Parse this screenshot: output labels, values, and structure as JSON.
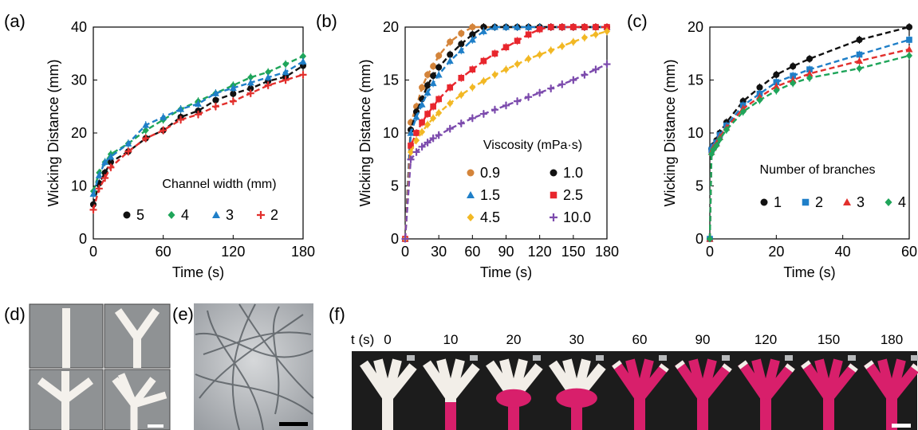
{
  "panel_labels": [
    "(a)",
    "(b)",
    "(c)",
    "(d)",
    "(e)",
    "(f)"
  ],
  "colors": {
    "black": "#111111",
    "green": "#1fa55a",
    "blue": "#1f7fc8",
    "red": "#e2302d",
    "orange": "#d4843a",
    "brightred": "#e8262d",
    "yellow": "#f2b824",
    "purple": "#7c4bad",
    "paper": "#f2eee8",
    "dye": "#d81f6b"
  },
  "chart_data": [
    {
      "type": "scatter",
      "xlabel": "Time (s)",
      "ylabel": "Wicking Distance (mm)",
      "xlim": [
        0,
        180
      ],
      "ylim": [
        0,
        40
      ],
      "xticks": [
        0,
        60,
        120,
        180
      ],
      "yticks": [
        0,
        10,
        20,
        30,
        40
      ],
      "grid": false,
      "legend": {
        "title": "Channel width (mm)",
        "placement": "bottom-center",
        "columns": 4
      },
      "series": [
        {
          "name": "5",
          "marker": "circle",
          "color": "#111111",
          "x": [
            0,
            5,
            10,
            15,
            30,
            45,
            60,
            75,
            90,
            105,
            120,
            135,
            150,
            165,
            180
          ],
          "y": [
            6.5,
            10.5,
            12.5,
            14.5,
            16.5,
            19.0,
            20.5,
            23.0,
            24.2,
            26.2,
            27.4,
            28.4,
            29.8,
            30.6,
            32.7
          ]
        },
        {
          "name": "4",
          "marker": "diamond",
          "color": "#1fa55a",
          "x": [
            0,
            5,
            10,
            15,
            30,
            45,
            60,
            75,
            90,
            105,
            120,
            135,
            150,
            165,
            180
          ],
          "y": [
            9.0,
            12.5,
            14.5,
            16.0,
            18.0,
            20.5,
            22.5,
            24.5,
            26.0,
            27.5,
            29.0,
            30.5,
            31.5,
            33.0,
            34.5
          ]
        },
        {
          "name": "3",
          "marker": "triangle",
          "color": "#1f7fc8",
          "x": [
            0,
            5,
            10,
            15,
            30,
            45,
            60,
            75,
            90,
            105,
            120,
            135,
            150,
            165,
            180
          ],
          "y": [
            8.5,
            12.0,
            14.5,
            15.5,
            18.0,
            21.5,
            23.0,
            24.5,
            25.5,
            27.5,
            28.5,
            29.5,
            30.5,
            31.5,
            33.5
          ]
        },
        {
          "name": "2",
          "marker": "plus",
          "color": "#e2302d",
          "x": [
            0,
            5,
            10,
            15,
            30,
            45,
            60,
            75,
            90,
            105,
            120,
            135,
            150,
            165,
            180
          ],
          "y": [
            5.5,
            9.5,
            11.5,
            13.5,
            16.5,
            19.0,
            20.5,
            22.5,
            23.5,
            25.0,
            26.0,
            27.5,
            29.0,
            30.0,
            31.0
          ]
        }
      ]
    },
    {
      "type": "scatter",
      "xlabel": "Time (s)",
      "ylabel": "Wicking Distance (mm)",
      "xlim": [
        0,
        180
      ],
      "ylim": [
        0,
        20
      ],
      "xticks": [
        0,
        30,
        60,
        90,
        120,
        150,
        180
      ],
      "yticks": [
        0,
        5,
        10,
        15,
        20
      ],
      "grid": false,
      "legend": {
        "title": "Viscosity (mPa·s)",
        "placement": "bottom-right",
        "columns": 2
      },
      "series": [
        {
          "name": "0.9",
          "marker": "circle",
          "color": "#d4843a",
          "x": [
            0,
            5,
            10,
            15,
            20,
            25,
            30,
            40,
            50,
            60,
            70,
            80,
            90,
            100,
            110,
            120,
            130,
            140,
            150,
            160,
            170,
            180
          ],
          "y": [
            0,
            11.0,
            12.5,
            14.3,
            15.5,
            16.3,
            17.3,
            18.6,
            19.4,
            20,
            20,
            20,
            20,
            20,
            20,
            20,
            20,
            20,
            20,
            20,
            20,
            20
          ]
        },
        {
          "name": "1.0",
          "marker": "circle",
          "color": "#111111",
          "x": [
            0,
            5,
            10,
            15,
            20,
            25,
            30,
            40,
            50,
            60,
            70,
            80,
            90,
            100,
            110,
            120,
            130,
            140,
            150,
            160,
            170,
            180
          ],
          "y": [
            0,
            10.3,
            12.0,
            13.2,
            14.5,
            15.4,
            16.2,
            17.4,
            18.4,
            19.3,
            20,
            20,
            20,
            20,
            20,
            20,
            20,
            20,
            20,
            20,
            20,
            20
          ]
        },
        {
          "name": "1.5",
          "marker": "triangle",
          "color": "#1f7fc8",
          "x": [
            0,
            5,
            10,
            15,
            20,
            25,
            30,
            40,
            50,
            60,
            70,
            80,
            90,
            100,
            110,
            120,
            130,
            140,
            150,
            160,
            170,
            180
          ],
          "y": [
            0,
            10.0,
            11.5,
            12.7,
            13.8,
            14.7,
            15.5,
            16.8,
            17.8,
            18.8,
            19.6,
            20,
            20,
            20,
            20,
            20,
            20,
            20,
            20,
            20,
            20,
            20
          ]
        },
        {
          "name": "2.5",
          "marker": "square",
          "color": "#e8262d",
          "x": [
            0,
            5,
            10,
            15,
            20,
            25,
            30,
            40,
            50,
            60,
            70,
            80,
            90,
            100,
            110,
            120,
            130,
            140,
            150,
            160,
            170,
            180
          ],
          "y": [
            0,
            8.8,
            10.0,
            11.0,
            11.8,
            12.5,
            13.2,
            14.3,
            15.2,
            16.0,
            16.8,
            17.5,
            18.1,
            18.7,
            19.3,
            19.8,
            20,
            20,
            20,
            20,
            20,
            20
          ]
        },
        {
          "name": "4.5",
          "marker": "diamond",
          "color": "#f2b824",
          "x": [
            0,
            5,
            10,
            15,
            20,
            25,
            30,
            40,
            50,
            60,
            70,
            80,
            90,
            100,
            110,
            120,
            130,
            140,
            150,
            160,
            170,
            180
          ],
          "y": [
            0,
            8.2,
            9.3,
            10.1,
            10.8,
            11.4,
            11.9,
            12.8,
            13.6,
            14.3,
            14.9,
            15.5,
            16.0,
            16.5,
            17.0,
            17.4,
            17.8,
            18.2,
            18.6,
            19.0,
            19.3,
            19.6
          ]
        },
        {
          "name": "10.0",
          "marker": "plus",
          "color": "#7c4bad",
          "x": [
            0,
            5,
            10,
            15,
            20,
            25,
            30,
            40,
            50,
            60,
            70,
            80,
            90,
            100,
            110,
            120,
            130,
            140,
            150,
            160,
            170,
            180
          ],
          "y": [
            0,
            7.5,
            8.2,
            8.7,
            9.1,
            9.5,
            9.8,
            10.4,
            10.9,
            11.4,
            11.8,
            12.2,
            12.6,
            13.0,
            13.4,
            13.8,
            14.2,
            14.6,
            15.0,
            15.5,
            16.0,
            16.5
          ]
        }
      ]
    },
    {
      "type": "scatter",
      "xlabel": "Time (s)",
      "ylabel": "Wicking Distance (mm)",
      "xlim": [
        0,
        60
      ],
      "ylim": [
        0,
        20
      ],
      "xticks": [
        0,
        20,
        40,
        60
      ],
      "yticks": [
        0,
        5,
        10,
        15,
        20
      ],
      "grid": false,
      "legend": {
        "title": "Number of branches",
        "placement": "bottom-right",
        "columns": 4
      },
      "series": [
        {
          "name": "1",
          "marker": "circle",
          "color": "#111111",
          "x": [
            0,
            0.5,
            1,
            2,
            3,
            5,
            10,
            15,
            20,
            25,
            30,
            45,
            60
          ],
          "y": [
            0,
            8.5,
            8.8,
            9.3,
            10.0,
            11.0,
            13.0,
            14.3,
            15.5,
            16.3,
            17.0,
            18.8,
            20.0
          ]
        },
        {
          "name": "2",
          "marker": "square",
          "color": "#1f7fc8",
          "x": [
            0,
            0.5,
            1,
            2,
            3,
            5,
            10,
            15,
            20,
            25,
            30,
            45,
            60
          ],
          "y": [
            0,
            8.4,
            8.7,
            9.1,
            9.8,
            10.7,
            12.6,
            13.7,
            14.8,
            15.4,
            16.0,
            17.4,
            18.8
          ]
        },
        {
          "name": "3",
          "marker": "triangle",
          "color": "#e2302d",
          "x": [
            0,
            0.5,
            1,
            2,
            3,
            5,
            10,
            15,
            20,
            25,
            30,
            45,
            60
          ],
          "y": [
            0,
            8.2,
            8.6,
            9.0,
            9.6,
            10.5,
            12.3,
            13.4,
            14.4,
            15.0,
            15.6,
            16.8,
            17.9
          ]
        },
        {
          "name": "4",
          "marker": "diamond",
          "color": "#1fa55a",
          "x": [
            0,
            0.5,
            1,
            2,
            3,
            5,
            10,
            15,
            20,
            25,
            30,
            45,
            60
          ],
          "y": [
            0,
            8.0,
            8.4,
            8.8,
            9.4,
            10.3,
            12.0,
            13.1,
            14.0,
            14.7,
            15.2,
            16.1,
            17.3
          ]
        }
      ]
    }
  ],
  "panel_f": {
    "time_unit_label": "t (s)",
    "times": [
      "0",
      "10",
      "20",
      "30",
      "60",
      "90",
      "120",
      "150",
      "180"
    ],
    "fill_levels": [
      0,
      0.35,
      0.55,
      0.72,
      0.85,
      0.93,
      0.97,
      0.99,
      1.0
    ]
  }
}
